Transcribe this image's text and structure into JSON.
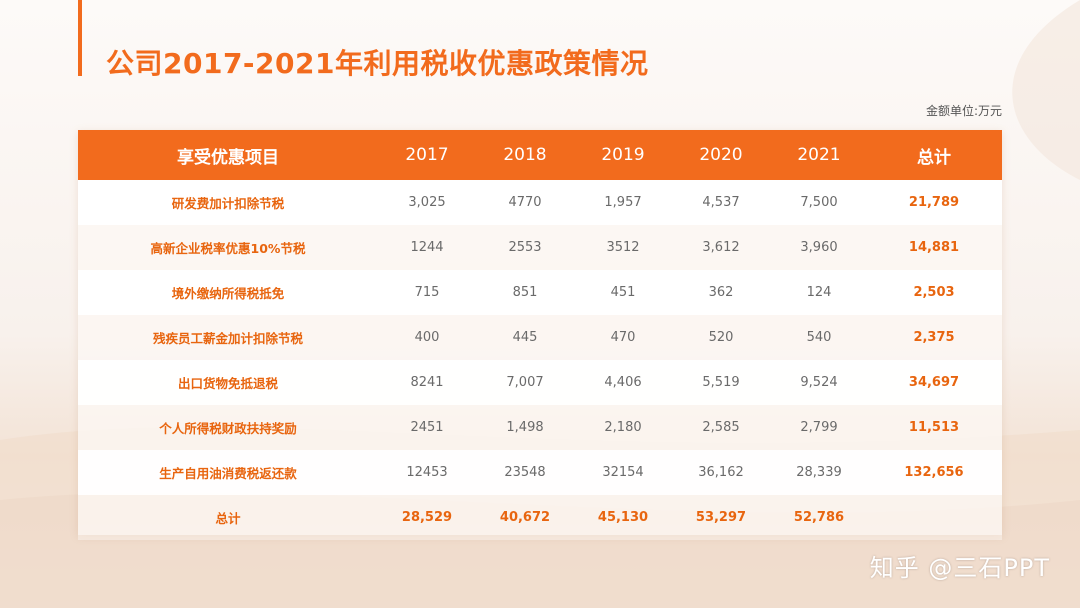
{
  "title": "公司2017-2021年利用税收优惠政策情况",
  "unit_label": "金额单位:万元",
  "colors": {
    "accent": "#f26b1d",
    "text_accent": "#e8650f"
  },
  "table": {
    "headers": [
      "享受优惠项目",
      "2017",
      "2018",
      "2019",
      "2020",
      "2021",
      "总计"
    ],
    "rows": [
      {
        "name": "研发费加计扣除节税",
        "values": [
          "3,025",
          "4770",
          "1,957",
          "4,537",
          "7,500"
        ],
        "total": "21,789"
      },
      {
        "name": "高新企业税率优惠10%节税",
        "values": [
          "1244",
          "2553",
          "3512",
          "3,612",
          "3,960"
        ],
        "total": "14,881"
      },
      {
        "name": "境外缴纳所得税抵免",
        "values": [
          "715",
          "851",
          "451",
          "362",
          "124"
        ],
        "total": "2,503"
      },
      {
        "name": "残疾员工薪金加计扣除节税",
        "values": [
          "400",
          "445",
          "470",
          "520",
          "540"
        ],
        "total": "2,375"
      },
      {
        "name": "出口货物免抵退税",
        "values": [
          "8241",
          "7,007",
          "4,406",
          "5,519",
          "9,524"
        ],
        "total": "34,697"
      },
      {
        "name": "个人所得税财政扶持奖励",
        "values": [
          "2451",
          "1,498",
          "2,180",
          "2,585",
          "2,799"
        ],
        "total": "11,513"
      },
      {
        "name": "生产自用油消费税返还款",
        "values": [
          "12453",
          "23548",
          "32154",
          "36,162",
          "28,339"
        ],
        "total": "132,656"
      }
    ],
    "total_row": {
      "name": "总计",
      "values": [
        "28,529",
        "40,672",
        "45,130",
        "53,297",
        "52,786"
      ],
      "total": ""
    }
  },
  "watermark": "知乎 @三石PPT"
}
